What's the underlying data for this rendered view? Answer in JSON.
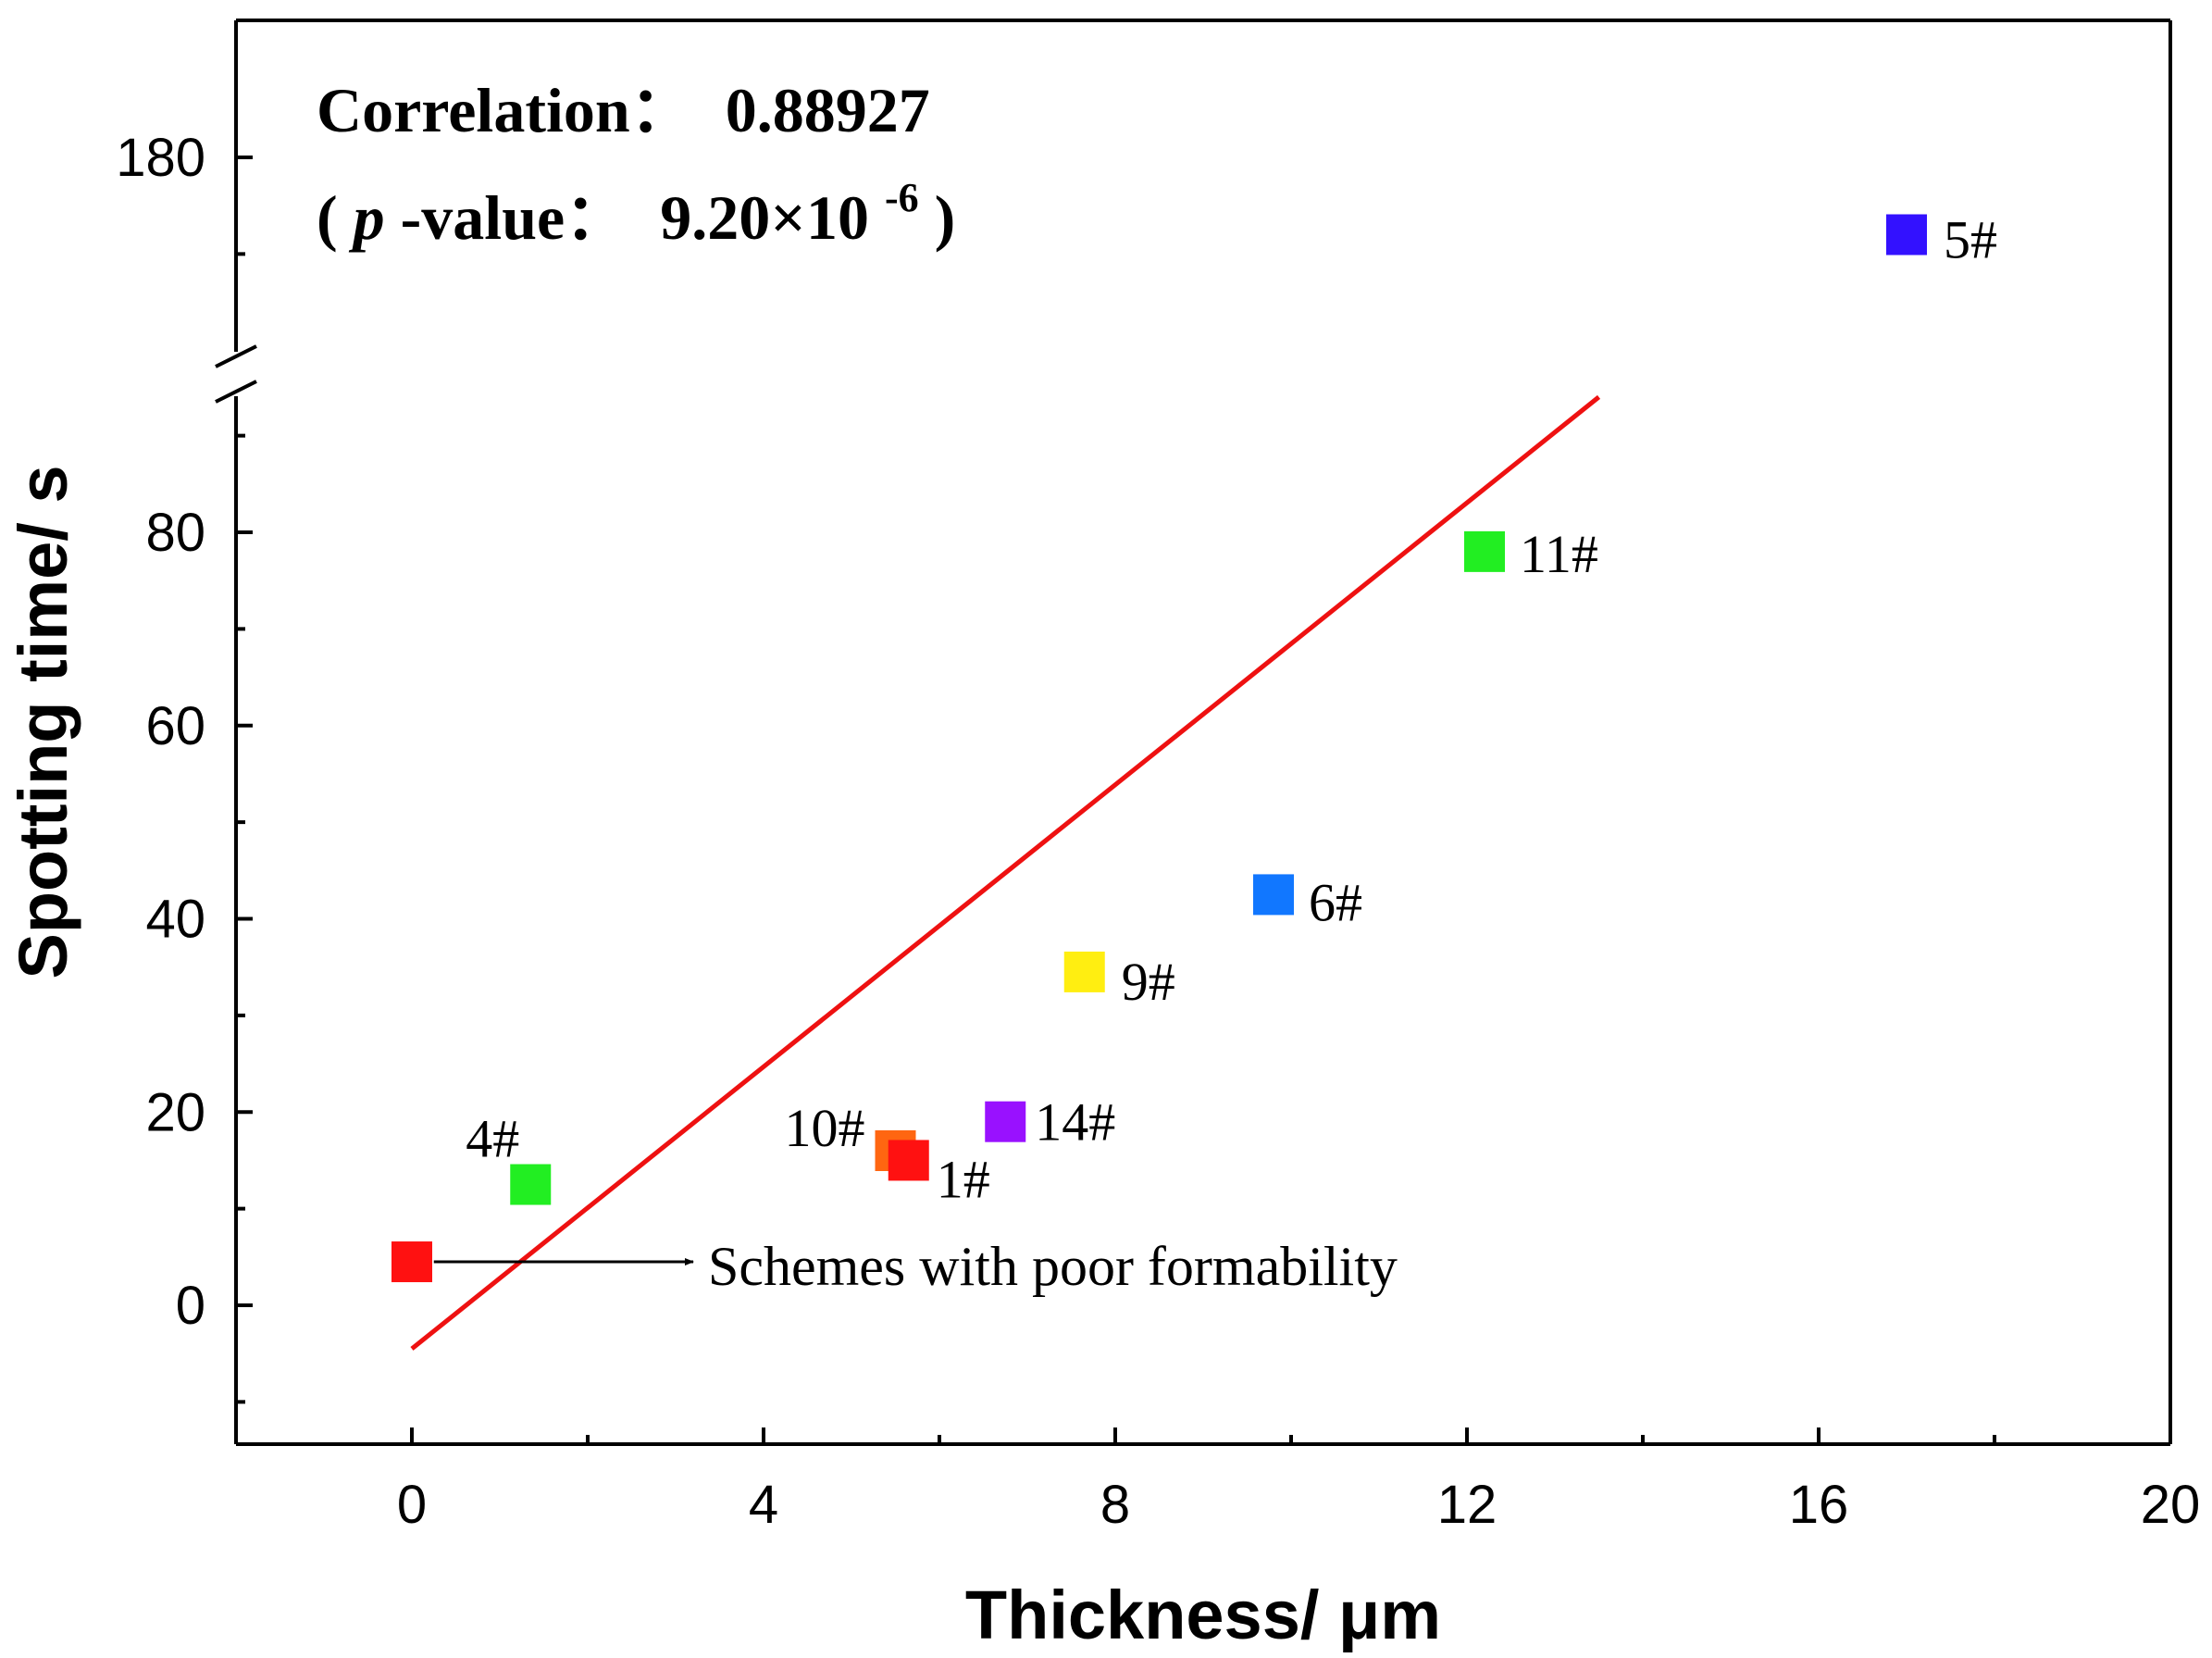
{
  "chart_data": {
    "type": "scatter",
    "xlabel": "Thickness/ μm",
    "ylabel": "Spotting time/ s",
    "xlim": [
      -2,
      20
    ],
    "x_ticks": [
      0,
      4,
      8,
      12,
      16,
      20
    ],
    "y_lower_range": [
      -13,
      94
    ],
    "y_lower_ticks": [
      0,
      20,
      40,
      60,
      80
    ],
    "y_upper_range": [
      150,
      195
    ],
    "y_upper_ticks": [
      180
    ],
    "axis_break": "y-axis between 94 and 150",
    "points": [
      {
        "label": "",
        "x": 0.0,
        "y": 4.5,
        "color": "#ff1111"
      },
      {
        "label": "4#",
        "x": 1.35,
        "y": 12.5,
        "color": "#22ee22"
      },
      {
        "label": "10#",
        "x": 5.5,
        "y": 16.0,
        "color": "#ff6611"
      },
      {
        "label": "1#",
        "x": 5.65,
        "y": 15.0,
        "color": "#ff1111"
      },
      {
        "label": "14#",
        "x": 6.75,
        "y": 19.0,
        "color": "#9911ff"
      },
      {
        "label": "9#",
        "x": 7.65,
        "y": 34.5,
        "color": "#ffee11"
      },
      {
        "label": "6#",
        "x": 9.8,
        "y": 42.5,
        "color": "#1177ff"
      },
      {
        "label": "11#",
        "x": 12.2,
        "y": 78.0,
        "color": "#22ee22"
      },
      {
        "label": "5#",
        "x": 17.0,
        "y": 172.0,
        "color": "#3311ff"
      }
    ],
    "fit_line": {
      "x": [
        0.0,
        13.5
      ],
      "y": [
        -4.5,
        94.0
      ],
      "color": "#ee1111"
    },
    "annotation": {
      "text": "Schemes with poor formability",
      "from": {
        "x": 0.25,
        "y": 4.5
      },
      "to": {
        "x": 3.2,
        "y": 4.5
      }
    },
    "stats": {
      "correlation_label": "Correlation：",
      "correlation_value": "0.88927",
      "pvalue_open": "(",
      "pvalue_p": "p",
      "pvalue_label": "-value：",
      "pvalue_mantissa": "9.20×10",
      "pvalue_exponent": "-6",
      "pvalue_close": ")"
    }
  }
}
